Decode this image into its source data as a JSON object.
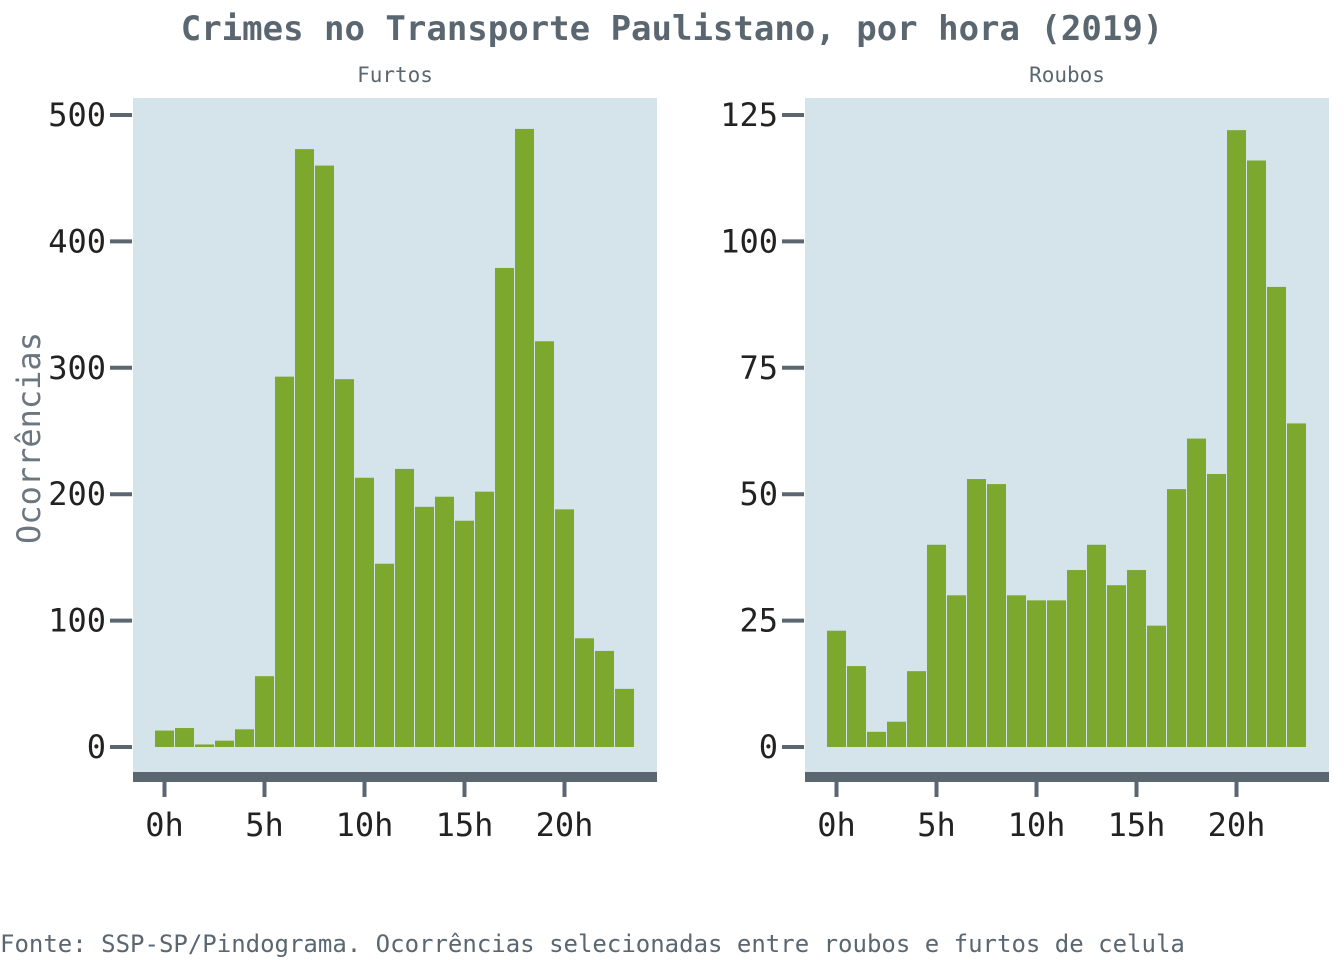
{
  "title": "Crimes no Transporte Paulistano, por hora (2019)",
  "ylabel": "Ocorrências",
  "caption": "Fonte: SSP-SP/Pindograma. Ocorrências selecionadas entre roubos e furtos de celula",
  "colors": {
    "bar": "#7ba82d",
    "panel": "#d4e4ea",
    "axis": "#5b6770",
    "text": "#5b6770"
  },
  "chart_data": [
    {
      "type": "bar",
      "facet": "Furtos",
      "x": [
        0,
        1,
        2,
        3,
        4,
        5,
        6,
        7,
        8,
        9,
        10,
        11,
        12,
        13,
        14,
        15,
        16,
        17,
        18,
        19,
        20,
        21,
        22,
        23
      ],
      "values": [
        13,
        15,
        2,
        5,
        14,
        56,
        293,
        473,
        460,
        291,
        213,
        145,
        220,
        190,
        198,
        179,
        202,
        379,
        489,
        321,
        188,
        86,
        76,
        46
      ],
      "x_ticks": [
        0,
        5,
        10,
        15,
        20
      ],
      "x_tick_labels": [
        "0h",
        "5h",
        "10h",
        "15h",
        "20h"
      ],
      "y_ticks": [
        0,
        100,
        200,
        300,
        400,
        500
      ],
      "y_tick_labels": [
        "0",
        "100",
        "200",
        "300",
        "400",
        "500"
      ],
      "ylim": [
        0,
        500
      ]
    },
    {
      "type": "bar",
      "facet": "Roubos",
      "x": [
        0,
        1,
        2,
        3,
        4,
        5,
        6,
        7,
        8,
        9,
        10,
        11,
        12,
        13,
        14,
        15,
        16,
        17,
        18,
        19,
        20,
        21,
        22,
        23
      ],
      "values": [
        23,
        16,
        3,
        5,
        15,
        40,
        30,
        53,
        52,
        30,
        29,
        29,
        35,
        40,
        32,
        35,
        24,
        51,
        61,
        54,
        122,
        116,
        91,
        64
      ],
      "x_ticks": [
        0,
        5,
        10,
        15,
        20
      ],
      "x_tick_labels": [
        "0h",
        "5h",
        "10h",
        "15h",
        "20h"
      ],
      "y_ticks": [
        0,
        25,
        50,
        75,
        100,
        125
      ],
      "y_tick_labels": [
        "0",
        "25",
        "50",
        "75",
        "100",
        "125"
      ],
      "ylim": [
        0,
        125
      ]
    }
  ]
}
